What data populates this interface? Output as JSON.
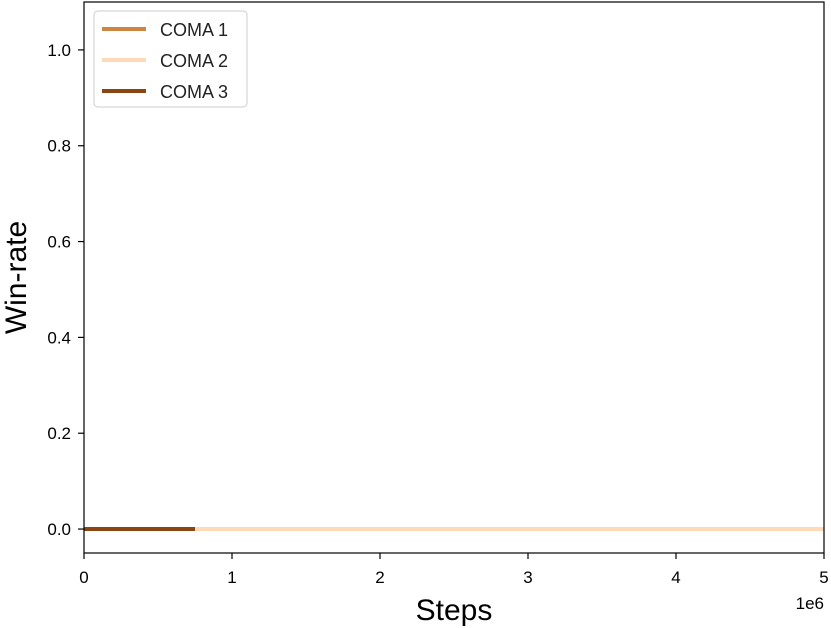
{
  "chart_data": {
    "type": "line",
    "xlabel": "Steps",
    "ylabel": "Win-rate",
    "x_offset_label": "1e6",
    "xlim": [
      0,
      5
    ],
    "ylim": [
      -0.05,
      1.1
    ],
    "x_ticks": [
      0,
      1,
      2,
      3,
      4,
      5
    ],
    "x_tick_labels": [
      "0",
      "1",
      "2",
      "3",
      "4",
      "5"
    ],
    "y_ticks": [
      0.0,
      0.2,
      0.4,
      0.6,
      0.8,
      1.0
    ],
    "y_tick_labels": [
      "0.0",
      "0.2",
      "0.4",
      "0.6",
      "0.8",
      "1.0"
    ],
    "grid": false,
    "legend_position": "top-left",
    "series": [
      {
        "name": "COMA 1",
        "color": "#cd853f",
        "x": [
          0,
          0.75
        ],
        "y": [
          0.0,
          0.0
        ]
      },
      {
        "name": "COMA 2",
        "color": "#ffdab9",
        "x": [
          0,
          5.0
        ],
        "y": [
          0.0,
          0.0
        ]
      },
      {
        "name": "COMA 3",
        "color": "#8b4513",
        "x": [
          0,
          0.75
        ],
        "y": [
          0.0,
          0.0
        ]
      }
    ]
  }
}
